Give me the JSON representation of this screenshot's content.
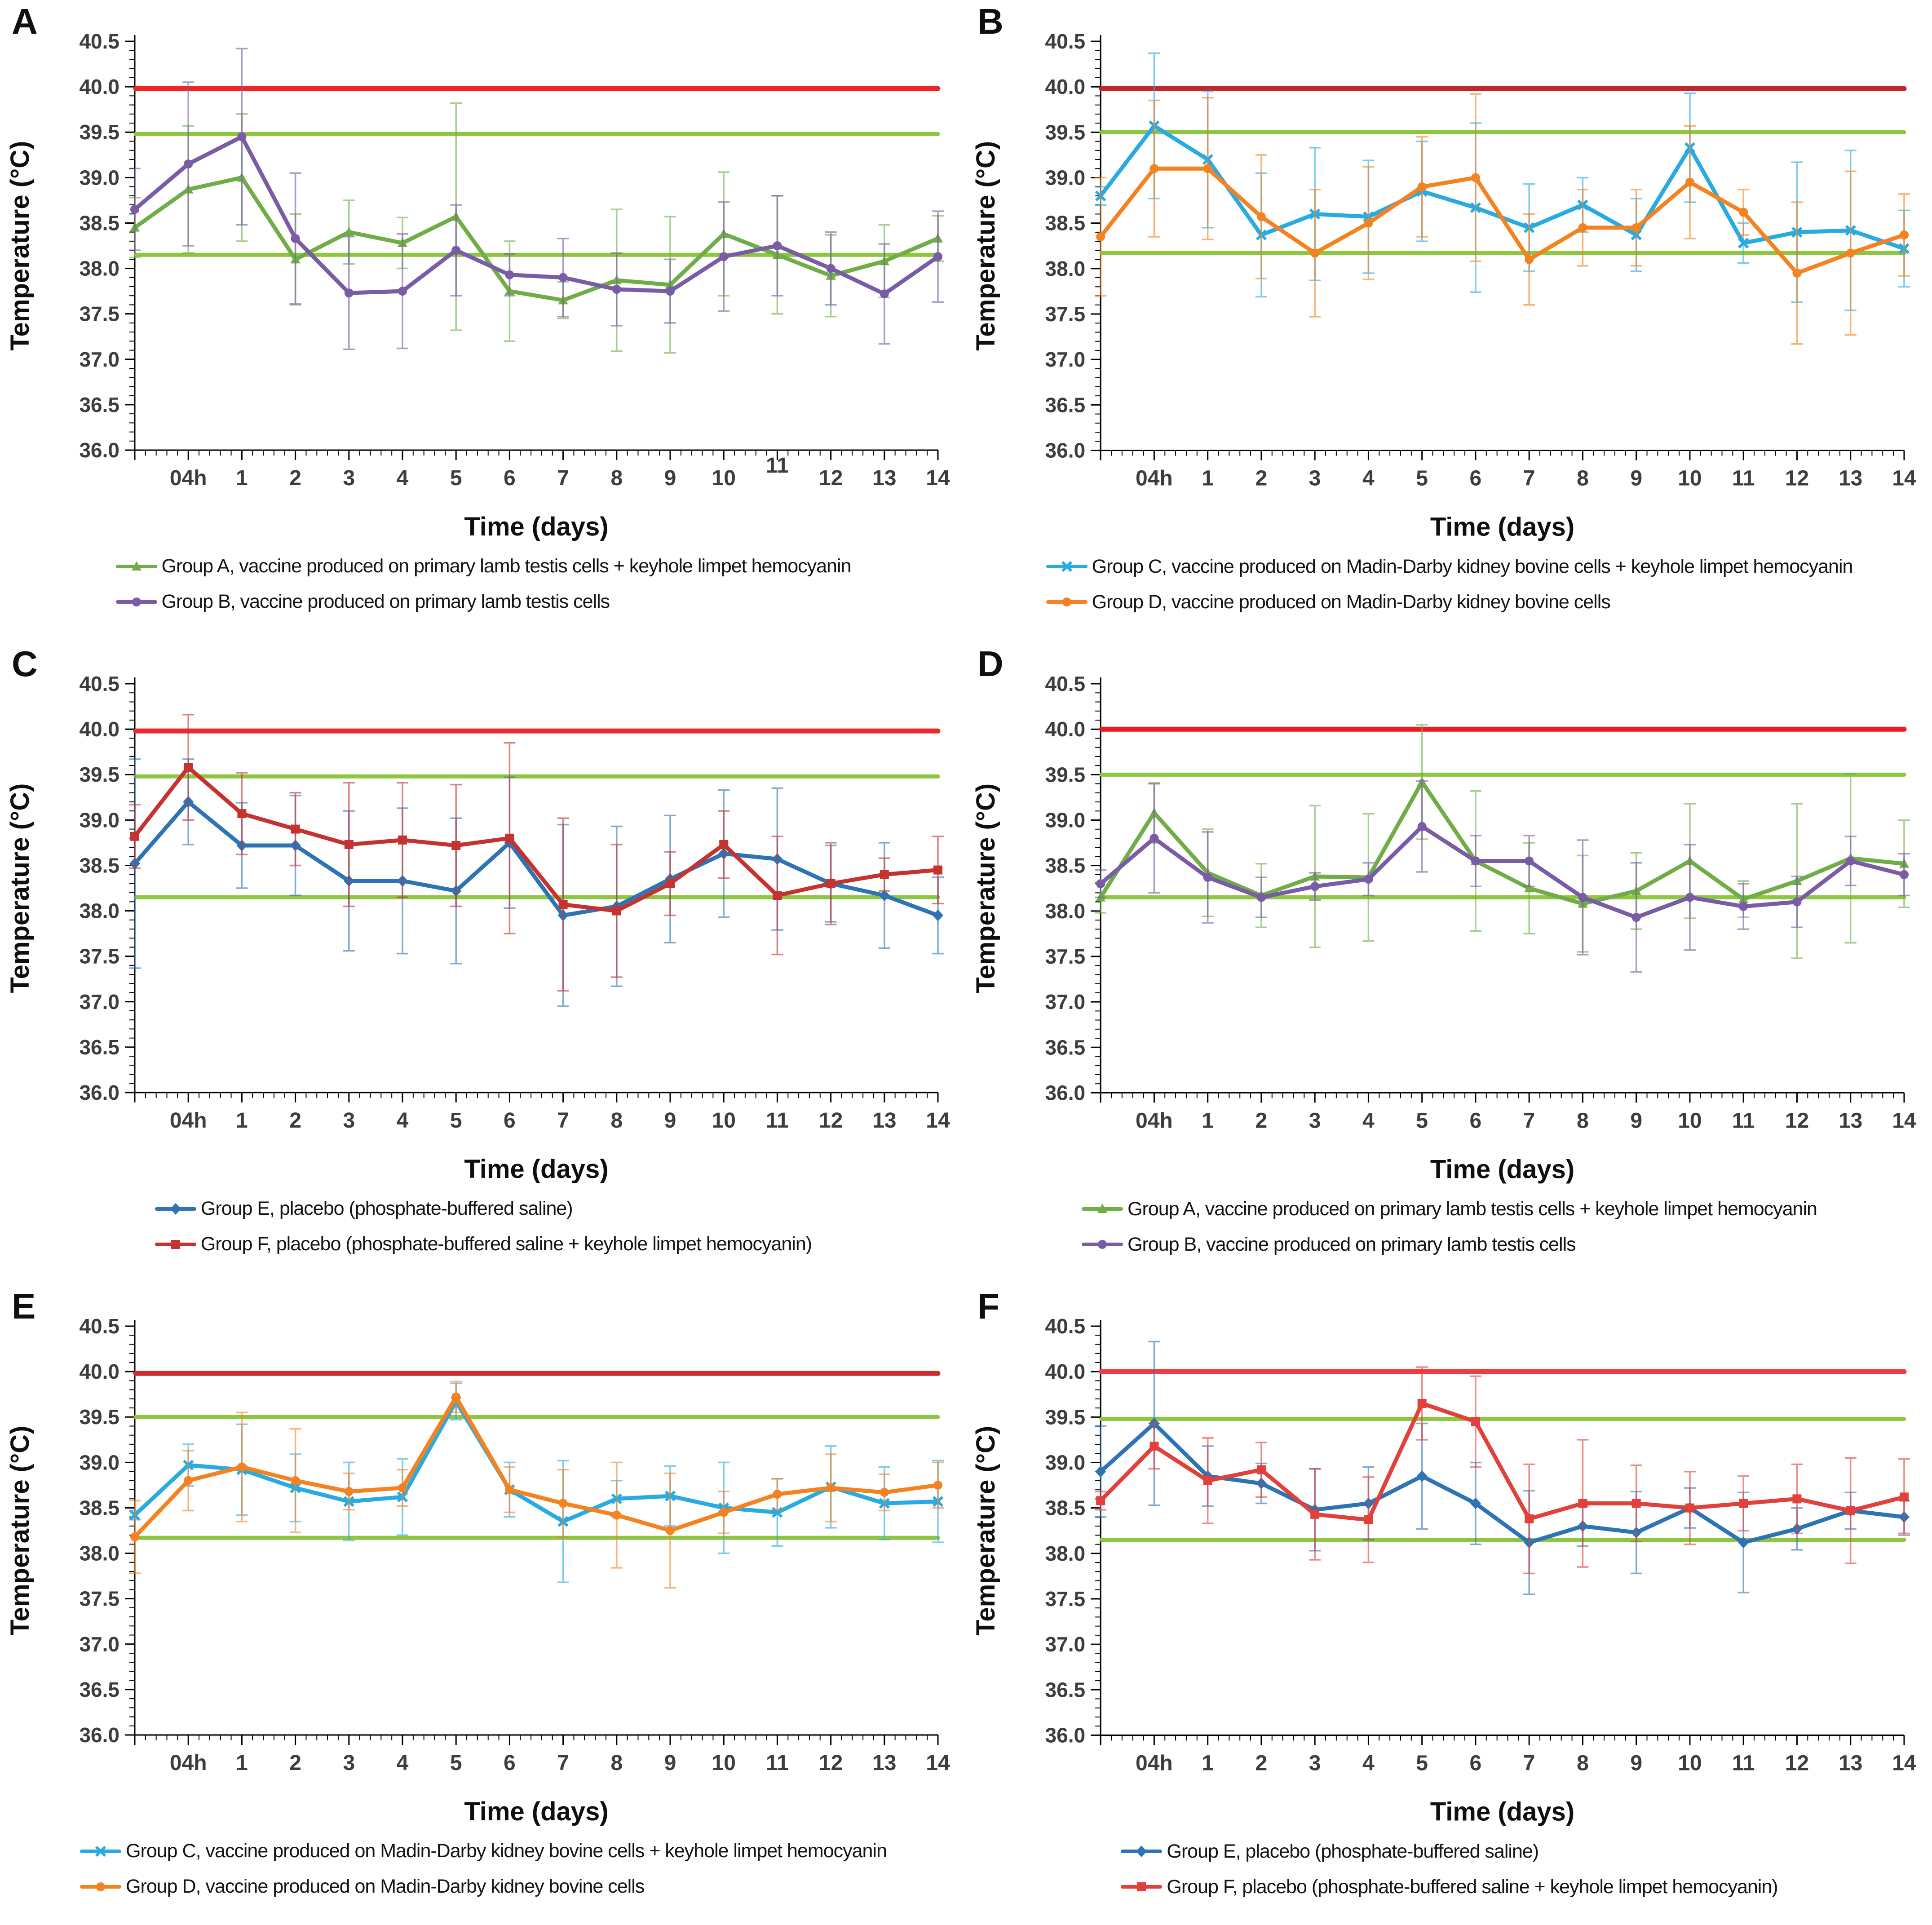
{
  "figure_title": "",
  "chart_data": [
    {
      "id": "A",
      "type": "line",
      "ylabel": "Temperature (°C)",
      "xlabel": "Time (days)",
      "ylim": [
        36.0,
        40.5
      ],
      "y_tick_labels": [
        "36.0",
        "36.5",
        "37.0",
        "37.5",
        "38.0",
        "38.5",
        "39.0",
        "39.5",
        "40.0",
        "40.5"
      ],
      "x_tick_labels": [
        "04h",
        "1",
        "2",
        "3",
        "4",
        "5",
        "6",
        "7",
        "8",
        "9",
        "10",
        "11",
        "12",
        "13",
        "14"
      ],
      "raised_x_labels": [
        "11"
      ],
      "x_note": "first point of each series sits on the y-axis (time 0), before the 04h tick",
      "reference_lines": [
        {
          "y": 39.98,
          "color": "#EE2624",
          "width": 11
        },
        {
          "y": 39.48,
          "color": "#8DC63F",
          "width": 9
        },
        {
          "y": 38.15,
          "color": "#8DC63F",
          "width": 9
        }
      ],
      "series": [
        {
          "name": "Group A, vaccine produced on primary lamb testis cells + keyhole limpet hemocyanin",
          "color": "#71AD47",
          "marker": "triangle",
          "values": [
            38.45,
            38.87,
            39.0,
            38.1,
            38.4,
            38.28,
            38.57,
            37.75,
            37.65,
            37.87,
            37.82,
            38.38,
            38.15,
            37.92,
            38.08,
            38.33
          ],
          "errors": [
            0.33,
            0.7,
            0.7,
            0.5,
            0.35,
            0.28,
            1.25,
            0.55,
            0.2,
            0.78,
            0.75,
            0.68,
            0.65,
            0.45,
            0.4,
            0.25
          ]
        },
        {
          "name": "Group B, vaccine produced on primary lamb testis cells",
          "color": "#7A5BA5",
          "marker": "circle",
          "values": [
            38.65,
            39.15,
            39.45,
            38.33,
            37.73,
            37.75,
            38.2,
            37.93,
            37.9,
            37.77,
            37.75,
            38.13,
            38.25,
            38.0,
            37.72,
            38.13
          ],
          "errors": [
            0.45,
            0.9,
            0.97,
            0.72,
            0.62,
            0.63,
            0.5,
            0.23,
            0.43,
            0.4,
            0.35,
            0.6,
            0.55,
            0.4,
            0.55,
            0.5
          ]
        }
      ]
    },
    {
      "id": "B",
      "type": "line",
      "ylabel": "Temperature (°C)",
      "xlabel": "Time (days)",
      "ylim": [
        36.0,
        40.5
      ],
      "y_tick_labels": [
        "36.0",
        "36.5",
        "37.0",
        "37.5",
        "38.0",
        "38.5",
        "39.0",
        "39.5",
        "40.0",
        "40.5"
      ],
      "x_tick_labels": [
        "04h",
        "1",
        "2",
        "3",
        "4",
        "5",
        "6",
        "7",
        "8",
        "9",
        "10",
        "11",
        "12",
        "13",
        "14"
      ],
      "raised_x_labels": [],
      "x_note": "first point of each series sits on the y-axis (time 0), before the 04h tick",
      "reference_lines": [
        {
          "y": 39.98,
          "color": "#C1282D",
          "width": 11
        },
        {
          "y": 39.5,
          "color": "#8DC63F",
          "width": 9
        },
        {
          "y": 38.17,
          "color": "#8DC63F",
          "width": 9
        }
      ],
      "series": [
        {
          "name": "Group C, vaccine produced on Madin-Darby kidney bovine cells + keyhole limpet hemocyanin",
          "color": "#29ABE2",
          "marker": "x",
          "values": [
            38.8,
            39.57,
            39.2,
            38.37,
            38.6,
            38.57,
            38.85,
            38.67,
            38.45,
            38.7,
            38.37,
            39.33,
            38.28,
            38.4,
            38.42,
            38.22
          ],
          "errors": [
            0.1,
            0.8,
            0.75,
            0.68,
            0.73,
            0.62,
            0.55,
            0.93,
            0.48,
            0.3,
            0.4,
            0.6,
            0.22,
            0.77,
            0.88,
            0.42
          ]
        },
        {
          "name": "Group D, vaccine produced on Madin-Darby kidney bovine cells",
          "color": "#F58220",
          "marker": "circle",
          "values": [
            38.35,
            39.1,
            39.1,
            38.57,
            38.17,
            38.5,
            38.9,
            39.0,
            38.1,
            38.45,
            38.45,
            38.95,
            38.62,
            37.95,
            38.17,
            38.37
          ],
          "errors": [
            0.65,
            0.75,
            0.78,
            0.68,
            0.7,
            0.62,
            0.55,
            0.92,
            0.5,
            0.42,
            0.42,
            0.62,
            0.25,
            0.78,
            0.9,
            0.45
          ]
        }
      ]
    },
    {
      "id": "C",
      "type": "line",
      "ylabel": "Temperature (°C)",
      "xlabel": "Time (days)",
      "ylim": [
        36.0,
        40.5
      ],
      "y_tick_labels": [
        "36.0",
        "36.5",
        "37.0",
        "37.5",
        "38.0",
        "38.5",
        "39.0",
        "39.5",
        "40.0",
        "40.5"
      ],
      "x_tick_labels": [
        "04h",
        "1",
        "2",
        "3",
        "4",
        "5",
        "6",
        "7",
        "8",
        "9",
        "10",
        "11",
        "12",
        "13",
        "14"
      ],
      "raised_x_labels": [],
      "x_note": "first point of each series sits on the y-axis (time 0), before the 04h tick",
      "reference_lines": [
        {
          "y": 39.98,
          "color": "#E92A2D",
          "width": 11
        },
        {
          "y": 39.48,
          "color": "#8DC63F",
          "width": 9
        },
        {
          "y": 38.15,
          "color": "#8DC63F",
          "width": 9
        }
      ],
      "series": [
        {
          "name": "Group E, placebo (phosphate-buffered saline)",
          "color": "#2E74B5",
          "marker": "diamond",
          "values": [
            38.52,
            39.2,
            38.72,
            38.72,
            38.33,
            38.33,
            38.22,
            38.75,
            37.95,
            38.05,
            38.35,
            38.63,
            38.57,
            38.3,
            38.17,
            37.95
          ],
          "errors": [
            1.15,
            0.47,
            0.47,
            0.55,
            0.77,
            0.8,
            0.8,
            0.72,
            1.0,
            0.88,
            0.7,
            0.7,
            0.78,
            0.42,
            0.58,
            0.42
          ]
        },
        {
          "name": "Group F, placebo (phosphate-buffered saline + keyhole limpet hemocyanin)",
          "color": "#C53331",
          "marker": "square",
          "values": [
            38.82,
            39.58,
            39.07,
            38.9,
            38.73,
            38.78,
            38.72,
            38.8,
            38.07,
            38.0,
            38.3,
            38.73,
            38.17,
            38.3,
            38.4,
            38.45
          ],
          "errors": [
            0.35,
            0.58,
            0.45,
            0.4,
            0.68,
            0.63,
            0.67,
            1.05,
            0.95,
            0.73,
            0.35,
            0.37,
            0.65,
            0.45,
            0.18,
            0.37
          ]
        }
      ]
    },
    {
      "id": "D",
      "type": "line",
      "ylabel": "Temperature (°C)",
      "xlabel": "Time (days)",
      "ylim": [
        36.0,
        40.5
      ],
      "y_tick_labels": [
        "36.0",
        "36.5",
        "37.0",
        "37.5",
        "38.0",
        "38.5",
        "39.0",
        "39.5",
        "40.0",
        "40.5"
      ],
      "x_tick_labels": [
        "04h",
        "1",
        "2",
        "3",
        "4",
        "5",
        "6",
        "7",
        "8",
        "9",
        "10",
        "11",
        "12",
        "13",
        "14"
      ],
      "raised_x_labels": [],
      "x_note": "first point of each series sits on the y-axis (time 0), before the 04h tick",
      "reference_lines": [
        {
          "y": 40.0,
          "color": "#ED1C24",
          "width": 11
        },
        {
          "y": 39.5,
          "color": "#8DC63F",
          "width": 9
        },
        {
          "y": 38.15,
          "color": "#8DC63F",
          "width": 9
        }
      ],
      "series": [
        {
          "name": "Group A, vaccine produced on primary lamb testis cells + keyhole limpet hemocyanin",
          "color": "#71AD47",
          "marker": "triangle",
          "values": [
            38.15,
            39.08,
            38.42,
            38.17,
            38.38,
            38.37,
            39.42,
            38.55,
            38.25,
            38.08,
            38.22,
            38.55,
            38.13,
            38.33,
            38.58,
            38.52
          ],
          "errors": [
            0.17,
            0.33,
            0.48,
            0.35,
            0.78,
            0.7,
            0.63,
            0.77,
            0.5,
            0.53,
            0.42,
            0.63,
            0.2,
            0.85,
            0.93,
            0.48
          ]
        },
        {
          "name": "Group B, vaccine produced on primary lamb testis cells",
          "color": "#7A5BA5",
          "marker": "circle",
          "values": [
            38.3,
            38.8,
            38.37,
            38.15,
            38.27,
            38.35,
            38.93,
            38.55,
            38.55,
            38.15,
            37.93,
            38.15,
            38.05,
            38.1,
            38.55,
            38.4
          ],
          "errors": [
            0.15,
            0.6,
            0.5,
            0.22,
            0.15,
            0.18,
            0.5,
            0.28,
            0.28,
            0.63,
            0.6,
            0.58,
            0.25,
            0.28,
            0.27,
            0.23
          ]
        }
      ]
    },
    {
      "id": "E",
      "type": "line",
      "ylabel": "Temperature (°C)",
      "xlabel": "Time (days)",
      "ylim": [
        36.0,
        40.5
      ],
      "y_tick_labels": [
        "36.0",
        "36.5",
        "37.0",
        "37.5",
        "38.0",
        "38.5",
        "39.0",
        "39.5",
        "40.0",
        "40.5"
      ],
      "x_tick_labels": [
        "04h",
        "1",
        "2",
        "3",
        "4",
        "5",
        "6",
        "7",
        "8",
        "9",
        "10",
        "11",
        "12",
        "13",
        "14"
      ],
      "raised_x_labels": [],
      "x_note": "first point of each series sits on the y-axis (time 0), before the 04h tick",
      "reference_lines": [
        {
          "y": 39.98,
          "color": "#CC2B33",
          "width": 11
        },
        {
          "y": 39.5,
          "color": "#8DC63F",
          "width": 9
        },
        {
          "y": 38.17,
          "color": "#8DC63F",
          "width": 9
        }
      ],
      "series": [
        {
          "name": "Group C, vaccine produced on Madin-Darby kidney bovine cells + keyhole limpet hemocyanin",
          "color": "#29ABE2",
          "marker": "x",
          "values": [
            38.42,
            38.97,
            38.92,
            38.72,
            38.57,
            38.62,
            39.67,
            38.7,
            38.35,
            38.6,
            38.63,
            38.5,
            38.45,
            38.73,
            38.55,
            38.57
          ],
          "errors": [
            0.05,
            0.23,
            0.5,
            0.37,
            0.43,
            0.42,
            0.2,
            0.3,
            0.67,
            0.2,
            0.33,
            0.5,
            0.37,
            0.45,
            0.4,
            0.45
          ]
        },
        {
          "name": "Group D, vaccine produced on Madin-Darby kidney bovine cells",
          "color": "#F58220",
          "marker": "circle",
          "values": [
            38.18,
            38.8,
            38.95,
            38.8,
            38.68,
            38.72,
            39.72,
            38.7,
            38.55,
            38.42,
            38.25,
            38.45,
            38.65,
            38.72,
            38.67,
            38.75
          ],
          "errors": [
            0.4,
            0.33,
            0.6,
            0.57,
            0.2,
            0.2,
            0.17,
            0.25,
            0.37,
            0.58,
            0.63,
            0.23,
            0.17,
            0.37,
            0.2,
            0.25
          ]
        }
      ]
    },
    {
      "id": "F",
      "type": "line",
      "ylabel": "Temperature (°C)",
      "xlabel": "Time (days)",
      "ylim": [
        36.0,
        40.5
      ],
      "y_tick_labels": [
        "36.0",
        "36.5",
        "37.0",
        "37.5",
        "38.0",
        "38.5",
        "39.0",
        "39.5",
        "40.0",
        "40.5"
      ],
      "x_tick_labels": [
        "04h",
        "1",
        "2",
        "3",
        "4",
        "5",
        "6",
        "7",
        "8",
        "9",
        "10",
        "11",
        "12",
        "13",
        "14"
      ],
      "raised_x_labels": [],
      "x_note": "first point of each series sits on the y-axis (time 0), before the 04h tick",
      "reference_lines": [
        {
          "y": 40.0,
          "color": "#F23B40",
          "width": 11
        },
        {
          "y": 39.48,
          "color": "#8DC63F",
          "width": 9
        },
        {
          "y": 38.15,
          "color": "#8DC63F",
          "width": 9
        }
      ],
      "series": [
        {
          "name": "Group E, placebo (phosphate-buffered saline)",
          "color": "#2E74B5",
          "marker": "diamond",
          "values": [
            38.9,
            39.43,
            38.85,
            38.77,
            38.48,
            38.55,
            38.85,
            38.55,
            38.12,
            38.3,
            38.23,
            38.5,
            38.12,
            38.27,
            38.47,
            38.4
          ],
          "errors": [
            0.5,
            0.9,
            0.33,
            0.22,
            0.45,
            0.4,
            0.58,
            0.45,
            0.57,
            0.22,
            0.45,
            0.22,
            0.55,
            0.23,
            0.2,
            0.18
          ]
        },
        {
          "name": "Group F, placebo (phosphate-buffered saline + keyhole limpet hemocyanin)",
          "color": "#E2403A",
          "marker": "square",
          "values": [
            38.58,
            39.18,
            38.8,
            38.92,
            38.43,
            38.37,
            39.65,
            39.45,
            38.38,
            38.55,
            38.55,
            38.5,
            38.55,
            38.6,
            38.47,
            38.62
          ],
          "errors": [
            0.1,
            0.25,
            0.47,
            0.3,
            0.5,
            0.47,
            0.4,
            0.5,
            0.6,
            0.7,
            0.42,
            0.4,
            0.3,
            0.38,
            0.58,
            0.42
          ]
        }
      ]
    }
  ]
}
